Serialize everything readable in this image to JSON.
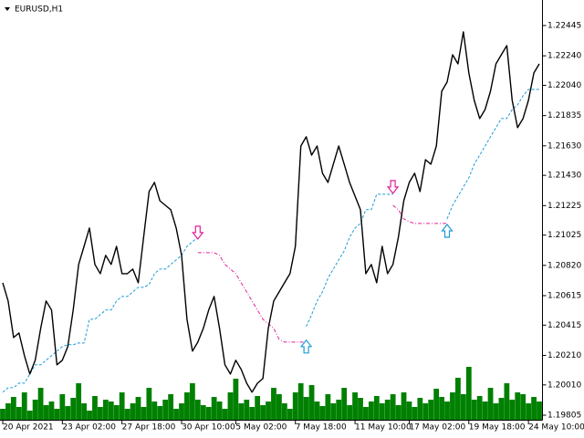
{
  "chart_data": {
    "type": "line",
    "title": "EURUSD,H1",
    "color": "#000000",
    "values": [
      1.20702,
      1.20579,
      1.20331,
      1.20362,
      1.20208,
      1.20084,
      1.20177,
      1.20393,
      1.20579,
      1.20517,
      1.20146,
      1.20177,
      1.2027,
      1.20517,
      1.20826,
      1.20949,
      1.21073,
      1.20826,
      1.20764,
      1.20888,
      1.20826,
      1.20949,
      1.20764,
      1.20764,
      1.20795,
      1.20702,
      1.21011,
      1.2132,
      1.21382,
      1.21258,
      1.21227,
      1.21197,
      1.21073,
      1.20888,
      1.20455,
      1.20239,
      1.203,
      1.20393,
      1.20517,
      1.20609,
      1.20393,
      1.20146,
      1.20084,
      1.20177,
      1.20115,
      1.20022,
      1.19961,
      1.20022,
      1.20053,
      1.20393,
      1.20579,
      1.2064,
      1.20702,
      1.20764,
      1.20949,
      1.21629,
      1.21691,
      1.21567,
      1.21629,
      1.21444,
      1.21382,
      1.21506,
      1.21629,
      1.21506,
      1.21382,
      1.21289,
      1.21197,
      1.20764,
      1.20826,
      1.20702,
      1.20949,
      1.20764,
      1.20826,
      1.21011,
      1.21258,
      1.21382,
      1.21444,
      1.2132,
      1.21536,
      1.21506,
      1.21629,
      1.22,
      1.22062,
      1.22247,
      1.22185,
      1.22402,
      1.22124,
      1.21938,
      1.21815,
      1.21876,
      1.22,
      1.22185,
      1.22247,
      1.22309,
      1.21938,
      1.21753,
      1.21815,
      1.21938,
      1.22124,
      1.22185
    ],
    "series": [
      {
        "color": "#1e9bd7",
        "style": "dash",
        "values": [
          1.19961,
          1.19991,
          1.19991,
          1.20022,
          1.20022,
          1.20084,
          1.20146,
          1.20146,
          1.20177,
          1.20208,
          1.20239,
          1.2027,
          1.20282,
          1.20282,
          1.20294,
          1.20294,
          1.20455,
          1.20455,
          1.20486,
          1.20517,
          1.20517,
          1.20579,
          1.20609,
          1.20609,
          1.2064,
          1.20671,
          1.20671,
          1.2069,
          1.20764,
          1.20795,
          1.20795,
          1.20826,
          1.20857,
          1.20888,
          1.20949,
          1.2098,
          1.21011,
          null,
          null,
          null,
          null,
          null,
          null,
          null,
          null,
          null,
          null,
          null,
          null,
          null,
          null,
          null,
          null,
          null,
          null,
          null,
          1.20406,
          1.20486,
          1.20579,
          1.2064,
          1.20733,
          1.20795,
          1.20857,
          1.20918,
          1.21011,
          1.21073,
          1.21104,
          1.21197,
          1.21197,
          1.21302,
          1.21302,
          1.21302,
          1.21302,
          null,
          null,
          null,
          null,
          null,
          null,
          null,
          null,
          null,
          1.21135,
          1.21227,
          1.21289,
          1.21351,
          1.21413,
          1.21506,
          1.21567,
          1.21629,
          1.21691,
          1.21753,
          1.21815,
          1.21815,
          1.21876,
          1.21907,
          1.21969,
          1.22012,
          1.22012,
          1.22012
        ]
      },
      {
        "color": "#e0209a",
        "style": "dashdot",
        "values": [
          null,
          null,
          null,
          null,
          null,
          null,
          null,
          null,
          null,
          null,
          null,
          null,
          null,
          null,
          null,
          null,
          null,
          null,
          null,
          null,
          null,
          null,
          null,
          null,
          null,
          null,
          null,
          null,
          null,
          null,
          null,
          null,
          null,
          null,
          null,
          null,
          1.20906,
          1.20906,
          1.20906,
          1.20906,
          1.20888,
          1.20826,
          1.20795,
          1.20764,
          1.20702,
          1.2064,
          1.20579,
          1.20517,
          1.20455,
          1.20424,
          1.20393,
          1.20319,
          1.203,
          1.203,
          1.203,
          1.203,
          1.203,
          null,
          null,
          null,
          null,
          null,
          null,
          null,
          null,
          null,
          null,
          null,
          null,
          null,
          null,
          null,
          1.21227,
          1.21197,
          1.21135,
          1.21116,
          1.21104,
          1.21104,
          1.21104,
          1.21104,
          1.21104,
          1.21104,
          1.21104,
          null,
          null,
          null,
          null,
          null,
          null,
          null,
          null,
          null,
          null,
          null,
          null,
          null,
          null,
          null,
          null,
          null
        ]
      },
      {
        "color": "#e0209a",
        "marker": "arrow-down",
        "values": [
          null,
          null,
          null,
          null,
          null,
          null,
          null,
          null,
          null,
          null,
          null,
          null,
          null,
          null,
          null,
          null,
          null,
          null,
          null,
          null,
          null,
          null,
          null,
          null,
          null,
          null,
          null,
          null,
          null,
          null,
          null,
          null,
          null,
          null,
          null,
          null,
          1.21042,
          null,
          null,
          null,
          null,
          null,
          null,
          null,
          null,
          null,
          null,
          null,
          null,
          null,
          null,
          null,
          null,
          null,
          null,
          null,
          null,
          null,
          null,
          null,
          null,
          null,
          null,
          null,
          null,
          null,
          null,
          null,
          null,
          null,
          null,
          null,
          1.21351,
          null,
          null,
          null,
          null,
          null,
          null,
          null,
          null,
          null,
          null,
          null,
          null,
          null,
          null,
          null,
          null,
          null,
          null,
          null,
          null,
          null,
          null,
          null,
          null,
          null,
          null,
          null
        ]
      },
      {
        "color": "#1e9bd7",
        "marker": "arrow-up",
        "values": [
          null,
          null,
          null,
          null,
          null,
          null,
          null,
          null,
          null,
          null,
          null,
          null,
          null,
          null,
          null,
          null,
          null,
          null,
          null,
          null,
          null,
          null,
          null,
          null,
          null,
          null,
          null,
          null,
          null,
          null,
          null,
          null,
          null,
          null,
          null,
          null,
          null,
          null,
          null,
          null,
          null,
          null,
          null,
          null,
          null,
          null,
          null,
          null,
          null,
          null,
          null,
          null,
          null,
          null,
          null,
          null,
          1.2027,
          null,
          null,
          null,
          null,
          null,
          null,
          null,
          null,
          null,
          null,
          null,
          null,
          null,
          null,
          null,
          null,
          null,
          null,
          null,
          null,
          null,
          null,
          null,
          null,
          null,
          1.21054,
          null,
          null,
          null,
          null,
          null,
          null,
          null,
          null,
          null,
          null,
          null,
          null,
          null,
          null,
          null,
          null,
          null
        ]
      }
    ],
    "volume": {
      "color": "#008000",
      "ylim": [
        0,
        100
      ],
      "values": [
        12,
        18,
        25,
        14,
        30,
        10,
        22,
        35,
        16,
        20,
        12,
        28,
        15,
        24,
        40,
        18,
        10,
        26,
        14,
        22,
        20,
        16,
        30,
        12,
        18,
        25,
        14,
        35,
        20,
        15,
        22,
        28,
        12,
        18,
        30,
        40,
        22,
        16,
        14,
        25,
        20,
        12,
        30,
        45,
        18,
        22,
        14,
        26,
        16,
        20,
        35,
        28,
        18,
        12,
        30,
        40,
        25,
        38,
        20,
        15,
        28,
        18,
        22,
        35,
        16,
        30,
        24,
        14,
        20,
        26,
        18,
        22,
        28,
        16,
        30,
        20,
        14,
        24,
        18,
        22,
        34,
        25,
        20,
        30,
        46,
        28,
        58,
        22,
        26,
        20,
        35,
        18,
        24,
        40,
        22,
        30,
        28,
        18,
        25,
        20
      ]
    },
    "xlim": [
      0,
      99
    ],
    "xticks": [
      {
        "value": 0,
        "label": "20 Apr 2021"
      },
      {
        "value": 11,
        "label": "23 Apr 02:00"
      },
      {
        "value": 22,
        "label": "27 Apr 18:00"
      },
      {
        "value": 33,
        "label": "30 Apr 10:00"
      },
      {
        "value": 43,
        "label": "5 May 02:00"
      },
      {
        "value": 54,
        "label": "7 May 18:00"
      },
      {
        "value": 65,
        "label": "11 May 10:00"
      },
      {
        "value": 75,
        "label": "17 May 02:00"
      },
      {
        "value": 86,
        "label": "19 May 18:00"
      },
      {
        "value": 97,
        "label": "24 May 10:00"
      }
    ],
    "ylim": [
      1.19774,
      1.22618
    ],
    "yticks": [
      1.22445,
      {
        "value": 1.2224,
        "label": "1.22240"
      },
      {
        "value": 1.2204,
        "label": "1.22040"
      },
      1.21835,
      {
        "value": 1.2163,
        "label": "1.21630"
      },
      {
        "value": 1.2143,
        "label": "1.21430"
      },
      1.21225,
      1.21025,
      {
        "value": 1.2082,
        "label": "1.20820"
      },
      1.20615,
      1.20415,
      {
        "value": 1.2021,
        "label": "1.20210"
      },
      {
        "value": 1.2001,
        "label": "1.20010"
      },
      1.19805
    ]
  }
}
